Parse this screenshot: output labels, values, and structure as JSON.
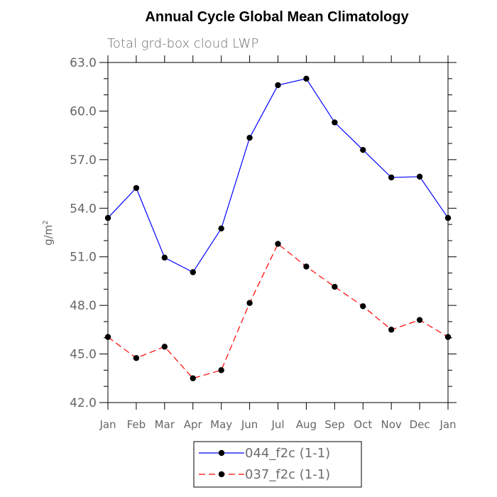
{
  "chart_data": {
    "type": "line",
    "title": "Annual Cycle Global Mean Climatology",
    "subtitle": "Total grd-box cloud LWP",
    "ylabel_base": "g/m",
    "ylabel_exp": "2",
    "categories": [
      "Jan",
      "Feb",
      "Mar",
      "Apr",
      "May",
      "Jun",
      "Jul",
      "Aug",
      "Sep",
      "Oct",
      "Nov",
      "Dec",
      "Jan"
    ],
    "ylim": [
      42.0,
      63.0
    ],
    "yticks": [
      "42.0",
      "45.0",
      "48.0",
      "51.0",
      "54.0",
      "57.0",
      "60.0",
      "63.0"
    ],
    "series": [
      {
        "name": "044_f2c (1-1)",
        "color": "#0000ff",
        "dash": "solid",
        "values": [
          53.4,
          55.25,
          50.95,
          50.05,
          52.75,
          58.35,
          61.6,
          62.0,
          59.3,
          57.6,
          55.9,
          55.95,
          53.4
        ]
      },
      {
        "name": "037_f2c (1-1)",
        "color": "#ff0000",
        "dash": "dashed",
        "values": [
          46.05,
          44.75,
          45.45,
          43.5,
          44.0,
          48.15,
          51.8,
          50.4,
          49.15,
          47.95,
          46.5,
          47.1,
          46.05
        ]
      }
    ],
    "legend_position": "bottom-center",
    "marker_color": "#000000"
  }
}
